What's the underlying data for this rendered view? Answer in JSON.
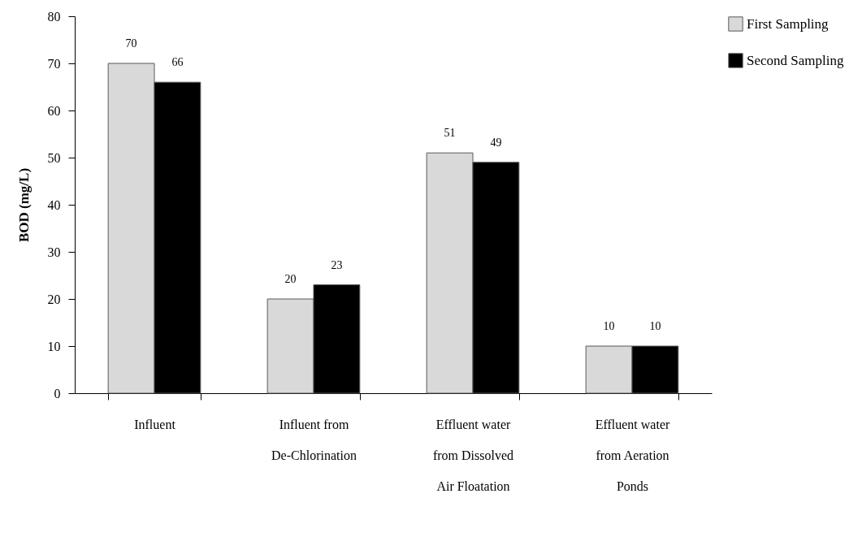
{
  "chart_data": {
    "type": "bar",
    "ylabel": "BOD (mg/L)",
    "categories": [
      "Influent",
      "Influent from De-Chlorination",
      "Effluent water from Dissolved Air Floatation",
      "Effluent water from Aeration Ponds"
    ],
    "series": [
      {
        "name": "First Sampling",
        "color": "#d9d9d9",
        "values": [
          70,
          20,
          51,
          10
        ]
      },
      {
        "name": "Second Sampling",
        "color": "#000000",
        "values": [
          66,
          23,
          49,
          10
        ]
      }
    ],
    "ylim": [
      0,
      80
    ],
    "yticks": [
      0,
      10,
      20,
      30,
      40,
      50,
      60,
      70,
      80
    ],
    "grid": false,
    "legend": "top right",
    "data_labels": true
  }
}
